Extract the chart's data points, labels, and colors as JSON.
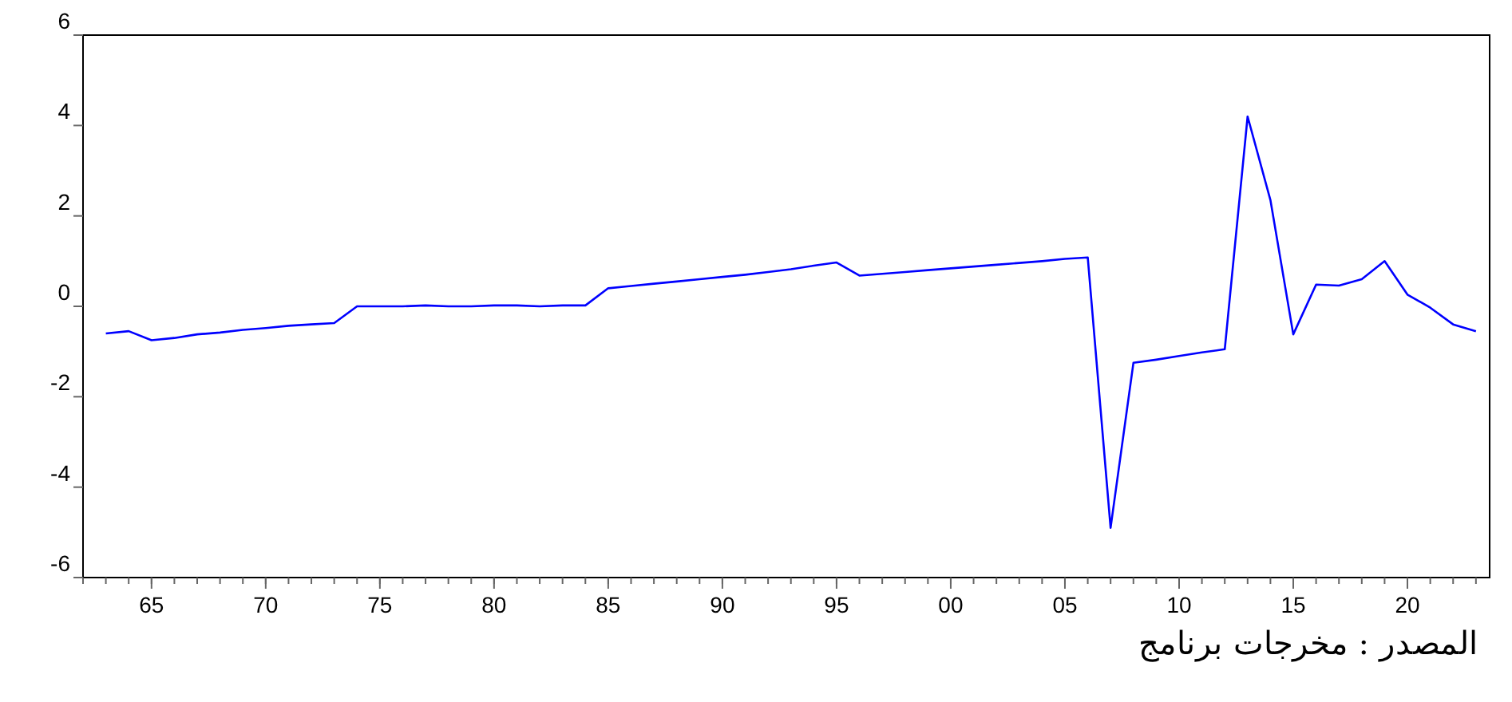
{
  "chart_data": {
    "type": "line",
    "x": [
      1963,
      1964,
      1965,
      1966,
      1967,
      1968,
      1969,
      1970,
      1971,
      1972,
      1973,
      1974,
      1975,
      1976,
      1977,
      1978,
      1979,
      1980,
      1981,
      1982,
      1983,
      1984,
      1985,
      1986,
      1987,
      1988,
      1989,
      1990,
      1991,
      1992,
      1993,
      1994,
      1995,
      1996,
      1997,
      1998,
      1999,
      2000,
      2001,
      2002,
      2003,
      2004,
      2005,
      2006,
      2007,
      2008,
      2009,
      2010,
      2011,
      2012,
      2013,
      2014,
      2015,
      2016,
      2017,
      2018,
      2019,
      2020,
      2021,
      2022,
      2023
    ],
    "series": [
      {
        "color": "#0000ff",
        "values": [
          -0.6,
          -0.55,
          -0.75,
          -0.7,
          -0.62,
          -0.58,
          -0.52,
          -0.48,
          -0.43,
          -0.4,
          -0.37,
          0.0,
          0.0,
          0.0,
          0.02,
          0.0,
          0.0,
          0.02,
          0.02,
          0.0,
          0.02,
          0.02,
          0.4,
          0.45,
          0.5,
          0.55,
          0.6,
          0.65,
          0.7,
          0.76,
          0.82,
          0.9,
          0.97,
          0.68,
          0.72,
          0.76,
          0.8,
          0.84,
          0.88,
          0.92,
          0.96,
          1.0,
          1.05,
          1.08,
          -4.9,
          -1.25,
          -1.18,
          -1.1,
          -1.02,
          -0.95,
          4.2,
          2.35,
          -0.62,
          0.48,
          0.46,
          0.6,
          1.0,
          0.26,
          -0.03,
          -0.4,
          -0.55
        ]
      }
    ],
    "xlim": [
      1962,
      2023.6
    ],
    "ylim": [
      -6,
      6
    ],
    "xticks": [
      {
        "value": 1965,
        "label": "65"
      },
      {
        "value": 1970,
        "label": "70"
      },
      {
        "value": 1975,
        "label": "75"
      },
      {
        "value": 1980,
        "label": "80"
      },
      {
        "value": 1985,
        "label": "85"
      },
      {
        "value": 1990,
        "label": "90"
      },
      {
        "value": 1995,
        "label": "95"
      },
      {
        "value": 2000,
        "label": "00"
      },
      {
        "value": 2005,
        "label": "05"
      },
      {
        "value": 2010,
        "label": "10"
      },
      {
        "value": 2015,
        "label": "15"
      },
      {
        "value": 2020,
        "label": "20"
      }
    ],
    "yticks": [
      -6,
      -4,
      -2,
      0,
      2,
      4,
      6
    ],
    "grid": false,
    "annotations": [
      "المصدر : مخرجات برنامج"
    ]
  }
}
